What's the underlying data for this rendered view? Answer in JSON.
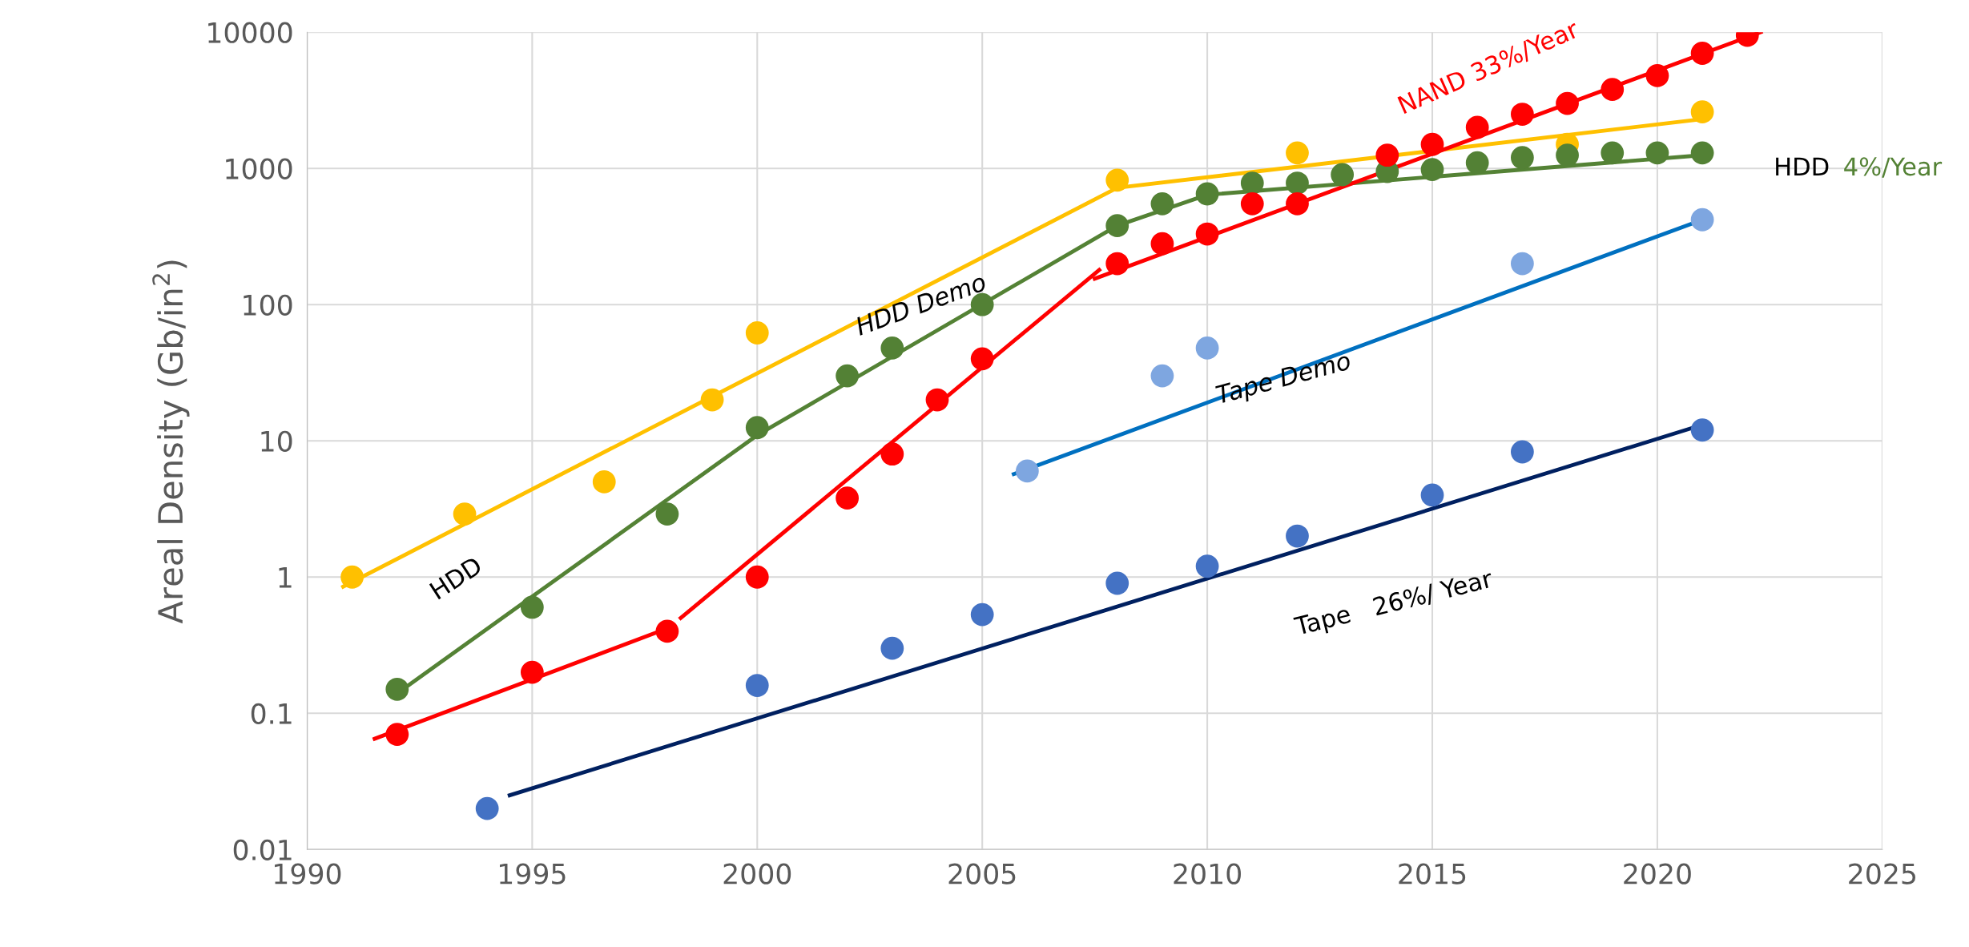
{
  "chart_data": {
    "type": "scatter",
    "ylabel": "Areal Density (Gb/in$^{2}$)",
    "log": "y",
    "grid": true,
    "legend": false,
    "xlim": [
      1990,
      2025
    ],
    "xticks": [
      1990,
      1995,
      2000,
      2005,
      2010,
      2015,
      2020,
      2025
    ],
    "ylim": [
      0.01,
      10000
    ],
    "yticks": [
      {
        "value": 0.01,
        "label": "0.01"
      },
      {
        "value": 0.1,
        "label": "0.1"
      },
      1,
      10,
      100,
      1000,
      10000
    ],
    "series": [
      {
        "type": "line",
        "color": "#ffc000",
        "x": [
          1990.8,
          2008,
          2021
        ],
        "values": [
          0.85,
          720,
          2300
        ]
      },
      {
        "type": "line",
        "color": "#548235",
        "x": [
          1992,
          2000,
          2008,
          2010,
          2021
        ],
        "values": [
          0.14,
          11,
          380,
          640,
          1250
        ]
      },
      {
        "type": "line",
        "color": "#ff0000",
        "x": [
          1991.5,
          1998
        ],
        "values": [
          0.065,
          0.42
        ]
      },
      {
        "type": "line",
        "color": "#ff0000",
        "x": [
          1998.3,
          2007.6
        ],
        "values": [
          0.5,
          180
        ]
      },
      {
        "type": "line",
        "color": "#ff0000",
        "x": [
          2007.5,
          2022.3
        ],
        "values": [
          155,
          10000
        ]
      },
      {
        "type": "line",
        "color": "#0070c0",
        "x": [
          2005.7,
          2021
        ],
        "values": [
          5.7,
          420
        ]
      },
      {
        "type": "line",
        "color": "#002060",
        "x": [
          1994.5,
          2020.8
        ],
        "values": [
          0.025,
          12.5
        ]
      },
      {
        "marker": "circle",
        "color": "#ffc000",
        "x": [
          1991,
          1993.5,
          1996.6,
          1999,
          2000,
          2008,
          2012,
          2018,
          2021
        ],
        "values": [
          1,
          2.9,
          5,
          20,
          62,
          820,
          1300,
          1500,
          2600
        ]
      },
      {
        "marker": "circle",
        "color": "#538135",
        "x": [
          1992,
          1995,
          1998,
          2000,
          2002,
          2003,
          2005,
          2008,
          2009,
          2010,
          2011,
          2012,
          2013,
          2014,
          2015,
          2016,
          2017,
          2018,
          2019,
          2020,
          2021
        ],
        "values": [
          0.15,
          0.6,
          2.9,
          12.5,
          30,
          48,
          100,
          380,
          550,
          650,
          780,
          780,
          900,
          950,
          980,
          1100,
          1200,
          1250,
          1300,
          1300,
          1300
        ]
      },
      {
        "marker": "circle",
        "color": "#ff0000",
        "x": [
          1992,
          1995,
          1998,
          2000,
          2002,
          2003,
          2004,
          2005,
          2008,
          2009,
          2010,
          2011,
          2012,
          2014,
          2015,
          2016,
          2017,
          2018,
          2019,
          2020,
          2021,
          2022
        ],
        "values": [
          0.07,
          0.2,
          0.4,
          1,
          3.8,
          8,
          20,
          40,
          200,
          280,
          330,
          550,
          550,
          1250,
          1500,
          2000,
          2500,
          3000,
          3800,
          4800,
          7000,
          9500
        ]
      },
      {
        "marker": "circle",
        "color": "#7ea6e0",
        "x": [
          2006,
          2009,
          2010,
          2017,
          2021
        ],
        "values": [
          6,
          30,
          48,
          200,
          420
        ]
      },
      {
        "marker": "circle",
        "color": "#4472c4",
        "x": [
          1994,
          2000,
          2003,
          2005,
          2008,
          2010,
          2012,
          2015,
          2017,
          2021
        ],
        "values": [
          0.02,
          0.16,
          0.3,
          0.53,
          0.9,
          1.2,
          2,
          4,
          8.3,
          12
        ]
      }
    ],
    "annotations": [
      "HDD Demo",
      "HDD",
      "NAND 33%/Year",
      "HDD",
      "4%/Year",
      "Tape Demo",
      "Tape   26%/ Year"
    ]
  }
}
